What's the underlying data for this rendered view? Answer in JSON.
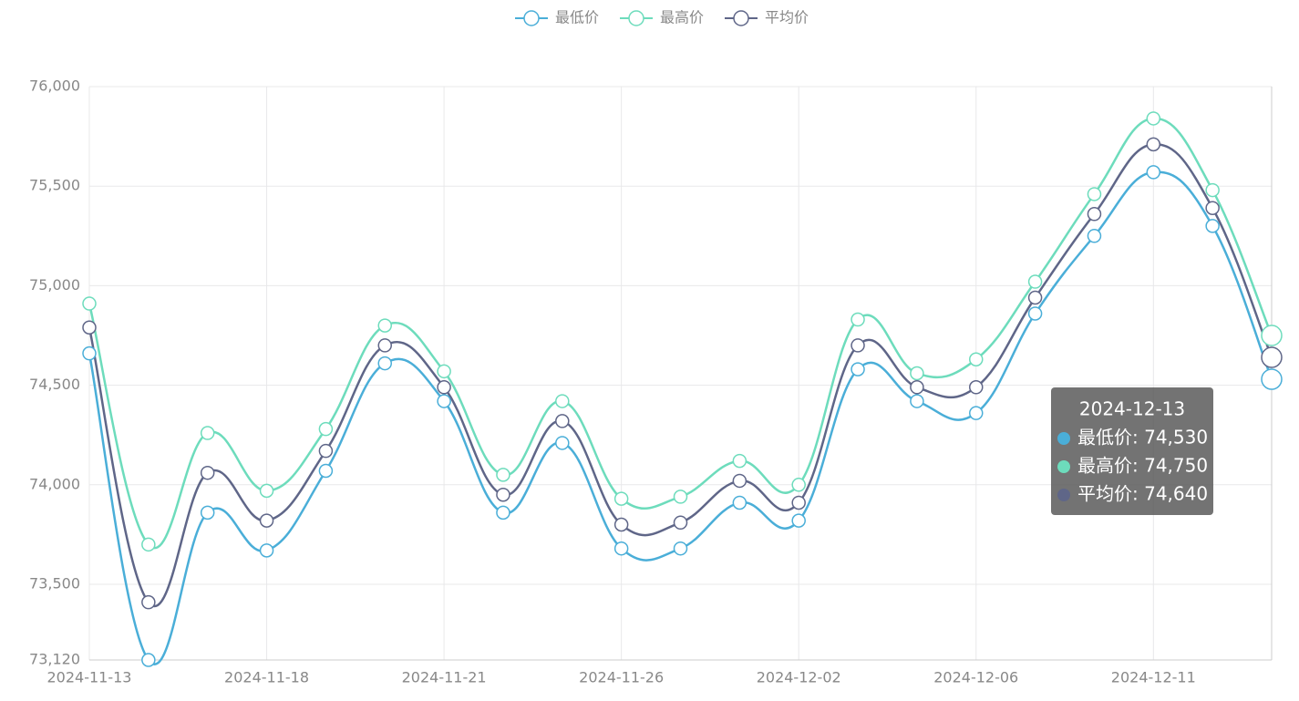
{
  "chart_data": {
    "type": "line",
    "categories": [
      "2024-11-13",
      null,
      null,
      "2024-11-18",
      null,
      null,
      "2024-11-21",
      null,
      null,
      "2024-11-26",
      null,
      null,
      "2024-12-02",
      null,
      null,
      "2024-12-06",
      null,
      null,
      "2024-12-11",
      null,
      "2024-12-13"
    ],
    "label_interval": 3,
    "series": [
      {
        "name": "最低价",
        "color": "#4aaed8",
        "values": [
          74660,
          73120,
          73860,
          73670,
          74070,
          74610,
          74420,
          73860,
          74210,
          73680,
          73680,
          73910,
          73820,
          74580,
          74420,
          74360,
          74860,
          75250,
          75570,
          75300,
          74530
        ]
      },
      {
        "name": "最高价",
        "color": "#6ddcbc",
        "values": [
          74910,
          73700,
          74260,
          73970,
          74280,
          74800,
          74570,
          74050,
          74420,
          73930,
          73940,
          74120,
          74000,
          74830,
          74560,
          74630,
          75020,
          75460,
          75840,
          75480,
          74750
        ]
      },
      {
        "name": "平均价",
        "color": "#5f6688",
        "values": [
          74790,
          73410,
          74060,
          73820,
          74170,
          74700,
          74490,
          73950,
          74320,
          73800,
          73810,
          74020,
          73910,
          74700,
          74490,
          74490,
          74940,
          75360,
          75710,
          75390,
          74640
        ]
      }
    ],
    "ylim": [
      73120,
      76000
    ],
    "yticks": [
      {
        "value": 73120,
        "label": "73,120"
      },
      {
        "value": 73500,
        "label": "73,500"
      },
      {
        "value": 74000,
        "label": "74,000"
      },
      {
        "value": 74500,
        "label": "74,500"
      },
      {
        "value": 75000,
        "label": "75,000"
      },
      {
        "value": 75500,
        "label": "75,500"
      },
      {
        "value": 76000,
        "label": "76,000"
      }
    ],
    "grid": true,
    "smooth": true,
    "legend": "top",
    "tooltip": {
      "items": [
        "最低价: 74,530",
        "最高价: 74,750",
        "平均价: 74,640"
      ]
    }
  }
}
